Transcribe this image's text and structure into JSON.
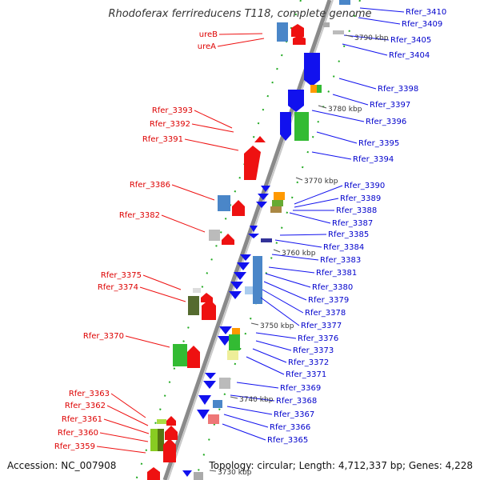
{
  "title": "Rhodoferax ferrireducens T118, complete genome",
  "footer": {
    "accession": "Accession: NC_007908",
    "summary": "Topology: circular; Length: 4,712,337 bp; Genes: 4,228"
  },
  "colors": {
    "forward": "#ee1111",
    "reverse": "#1111ee",
    "backbone": "#888888"
  },
  "kbp_ticks": [
    "3790 kbp",
    "3780 kbp",
    "3770 kbp",
    "3760 kbp",
    "3750 kbp",
    "3740 kbp",
    "3730 kbp"
  ],
  "forward_labels": [
    "ureB",
    "ureA",
    "Rfer_3393",
    "Rfer_3392",
    "Rfer_3391",
    "Rfer_3386",
    "Rfer_3382",
    "Rfer_3375",
    "Rfer_3374",
    "Rfer_3370",
    "Rfer_3363",
    "Rfer_3362",
    "Rfer_3361",
    "Rfer_3360",
    "Rfer_3359"
  ],
  "reverse_labels": [
    "Rfer_3410",
    "Rfer_3409",
    "Rfer_3405",
    "Rfer_3404",
    "Rfer_3398",
    "Rfer_3397",
    "Rfer_3396",
    "Rfer_3395",
    "Rfer_3394",
    "Rfer_3390",
    "Rfer_3389",
    "Rfer_3388",
    "Rfer_3387",
    "Rfer_3385",
    "Rfer_3384",
    "Rfer_3383",
    "Rfer_3381",
    "Rfer_3380",
    "Rfer_3379",
    "Rfer_3378",
    "Rfer_3377",
    "Rfer_3376",
    "Rfer_3373",
    "Rfer_3372",
    "Rfer_3371",
    "Rfer_3369",
    "Rfer_3368",
    "Rfer_3367",
    "Rfer_3366",
    "Rfer_3365"
  ]
}
